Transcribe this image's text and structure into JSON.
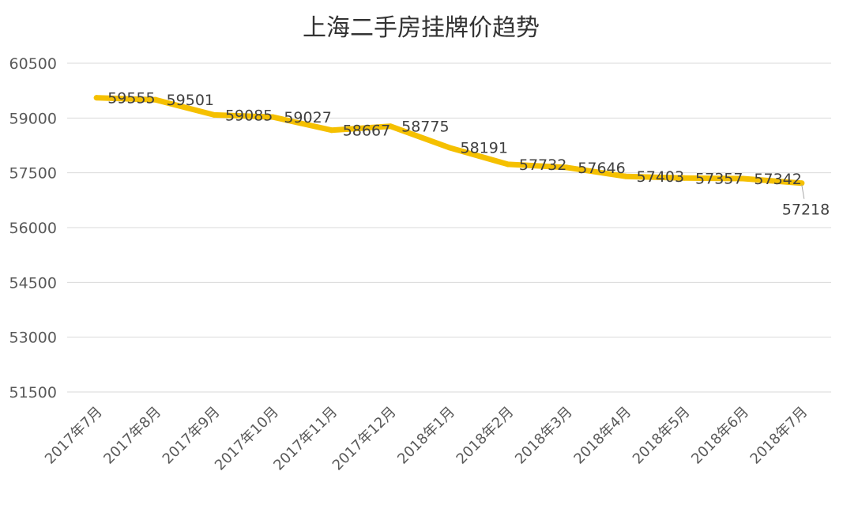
{
  "chart_data": {
    "type": "line",
    "title": "上海二手房挂牌价趋势",
    "xlabel": "",
    "ylabel": "",
    "ylim": [
      51500,
      60500
    ],
    "yticks": [
      51500,
      53000,
      54500,
      56000,
      57500,
      59000,
      60500
    ],
    "grid": true,
    "legend": "none",
    "line_color": "#F5C000",
    "categories": [
      "2017年7月",
      "2017年8月",
      "2017年9月",
      "2017年10月",
      "2017年11月",
      "2017年12月",
      "2018年1月",
      "2018年2月",
      "2018年3月",
      "2018年4月",
      "2018年5月",
      "2018年6月",
      "2018年7月"
    ],
    "series": [
      {
        "values": [
          59555,
          59501,
          59085,
          59027,
          58667,
          58775,
          58191,
          57732,
          57646,
          57403,
          57357,
          57342,
          57218
        ]
      }
    ]
  }
}
